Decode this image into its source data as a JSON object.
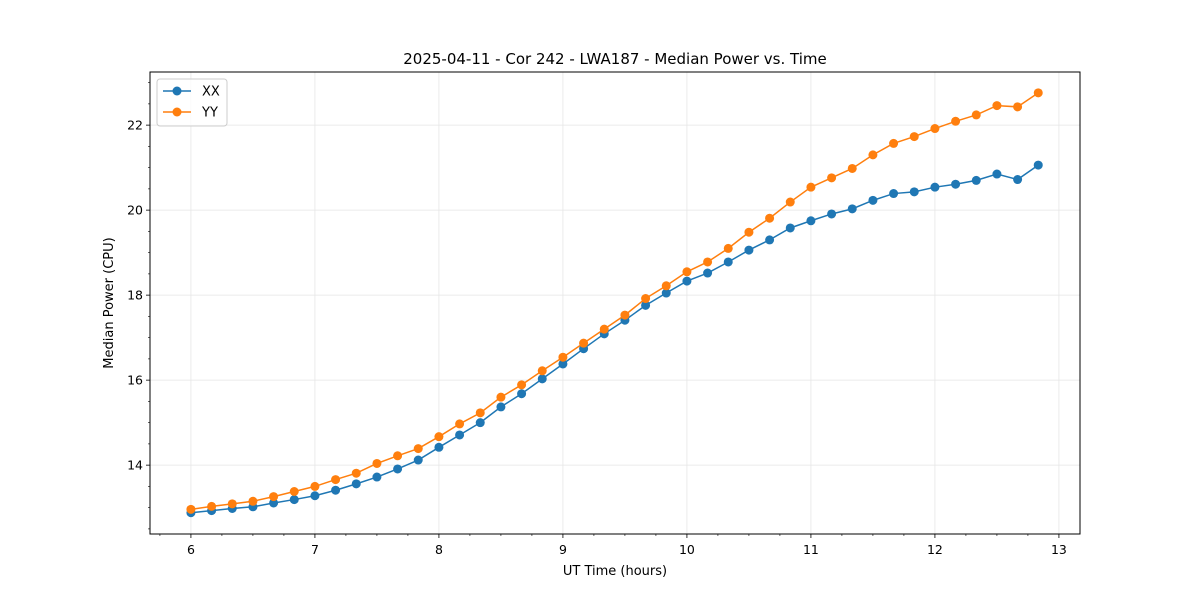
{
  "chart_data": {
    "type": "line",
    "title": "2025-04-11 - Cor 242 - LWA187 - Median Power vs. Time",
    "xlabel": "UT Time (hours)",
    "ylabel": "Median Power (CPU)",
    "xlim": [
      5.67,
      13.17
    ],
    "ylim": [
      12.38,
      23.25
    ],
    "xticks": [
      6,
      7,
      8,
      9,
      10,
      11,
      12,
      13
    ],
    "yticks": [
      14,
      16,
      18,
      20,
      22
    ],
    "grid": true,
    "legend_position": "top-left",
    "x": [
      6.0,
      6.1667,
      6.3333,
      6.5,
      6.6667,
      6.8333,
      7.0,
      7.1667,
      7.3333,
      7.5,
      7.6667,
      7.8333,
      8.0,
      8.1667,
      8.3333,
      8.5,
      8.6667,
      8.8333,
      9.0,
      9.1667,
      9.3333,
      9.5,
      9.6667,
      9.8333,
      10.0,
      10.1667,
      10.3333,
      10.5,
      10.6667,
      10.8333,
      11.0,
      11.1667,
      11.3333,
      11.5,
      11.6667,
      11.8333,
      12.0,
      12.1667,
      12.3333,
      12.5,
      12.6667,
      12.8333
    ],
    "series": [
      {
        "name": "XX",
        "color": "#1f77b4",
        "values": [
          12.88,
          12.93,
          12.98,
          13.02,
          13.11,
          13.19,
          13.28,
          13.41,
          13.56,
          13.72,
          13.91,
          14.12,
          14.42,
          14.71,
          15.0,
          15.37,
          15.68,
          16.03,
          16.38,
          16.74,
          17.09,
          17.41,
          17.76,
          18.05,
          18.33,
          18.52,
          18.78,
          19.06,
          19.3,
          19.58,
          19.75,
          19.91,
          20.03,
          20.23,
          20.39,
          20.43,
          20.54,
          20.61,
          20.7,
          20.85,
          20.72,
          21.06
        ]
      },
      {
        "name": "YY",
        "color": "#ff7f0e",
        "values": [
          12.96,
          13.03,
          13.09,
          13.15,
          13.26,
          13.38,
          13.5,
          13.66,
          13.81,
          14.04,
          14.22,
          14.39,
          14.67,
          14.97,
          15.23,
          15.6,
          15.89,
          16.22,
          16.54,
          16.87,
          17.2,
          17.53,
          17.92,
          18.22,
          18.55,
          18.78,
          19.1,
          19.48,
          19.81,
          20.19,
          20.54,
          20.76,
          20.98,
          21.3,
          21.57,
          21.73,
          21.92,
          22.09,
          22.24,
          22.46,
          22.43,
          22.76
        ]
      }
    ]
  }
}
